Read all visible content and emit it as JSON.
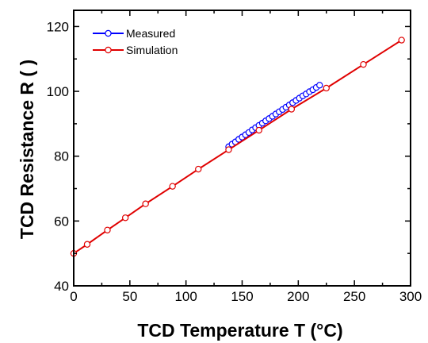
{
  "chart_data": {
    "type": "line",
    "xlabel": "TCD Temperature T (°C)",
    "ylabel": "TCD Resistance R (  )",
    "xlim": [
      0,
      300
    ],
    "ylim": [
      40,
      125
    ],
    "xticks": [
      "0",
      "50",
      "100",
      "150",
      "200",
      "250",
      "300"
    ],
    "yticks": [
      "40",
      "60",
      "80",
      "100",
      "120"
    ],
    "grid": false,
    "legend_position": "top-left",
    "series": [
      {
        "name": "Measured",
        "color": "#0000ff",
        "marker": "open-circle",
        "x": [
          138,
          141,
          144,
          147,
          150,
          153,
          156,
          159,
          162,
          165,
          168,
          171,
          174,
          177,
          180,
          183,
          186,
          189,
          192,
          195,
          198,
          201,
          204,
          207,
          210,
          213,
          216,
          219
        ],
        "y": [
          82.9,
          83.7,
          84.4,
          85.2,
          85.9,
          86.6,
          87.3,
          88.1,
          88.8,
          89.5,
          90.2,
          90.9,
          91.6,
          92.3,
          93.0,
          93.7,
          94.4,
          95.1,
          95.8,
          96.5,
          97.2,
          97.9,
          98.6,
          99.2,
          99.9,
          100.5,
          101.2,
          101.9
        ]
      },
      {
        "name": "Simulation",
        "color": "#e00000",
        "marker": "open-circle",
        "x": [
          0,
          12,
          30,
          46,
          64,
          88,
          111,
          138,
          165,
          194,
          225,
          258,
          292
        ],
        "y": [
          50.0,
          52.8,
          57.2,
          61.0,
          65.3,
          70.7,
          76.0,
          82.0,
          88.0,
          94.5,
          101.0,
          108.3,
          115.8
        ]
      }
    ]
  }
}
